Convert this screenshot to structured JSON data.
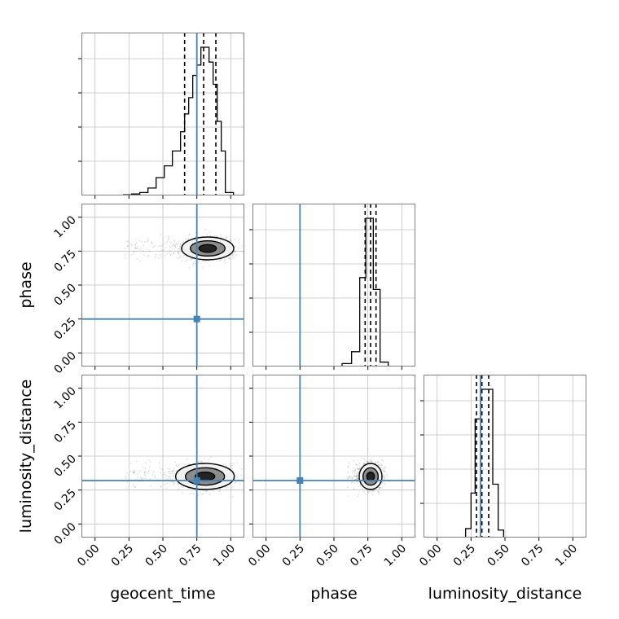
{
  "colors": {
    "truth": "#4682b4",
    "grid": "#c0c0c0",
    "spine": "#808080",
    "hist": "#000000",
    "samples": "#000000",
    "contour_fill_inner": "#111111",
    "contour_fill_mid": "#7a7a7a",
    "contour_fill_outer": "#f2f2f2"
  },
  "chart_data": {
    "type": "corner",
    "parameters": [
      "geocent_time",
      "phase",
      "luminosity_distance"
    ],
    "axis_labels": {
      "x": [
        "geocent_time",
        "phase",
        "luminosity_distance"
      ],
      "y": [
        "",
        "phase",
        "luminosity_distance"
      ]
    },
    "tick_values": [
      0.0,
      0.25,
      0.5,
      0.75,
      1.0
    ],
    "tick_labels": [
      "0.00",
      "0.25",
      "0.50",
      "0.75",
      "1.00"
    ],
    "xlim": [
      -0.1,
      1.1
    ],
    "ylim": [
      -0.1,
      1.1
    ],
    "truths": {
      "geocent_time": 0.75,
      "phase": 0.25,
      "luminosity_distance": 0.32
    },
    "quantile_lines": {
      "geocent_time": [
        0.66,
        0.8,
        0.89
      ],
      "phase": [
        0.73,
        0.77,
        0.81
      ],
      "luminosity_distance": [
        0.29,
        0.33,
        0.38
      ]
    },
    "histograms": {
      "geocent_time": {
        "bin_edges": [
          0.21,
          0.27,
          0.33,
          0.39,
          0.45,
          0.51,
          0.57,
          0.63,
          0.66,
          0.69,
          0.72,
          0.75,
          0.78,
          0.81,
          0.84,
          0.87,
          0.9,
          0.93,
          0.96,
          1.02
        ],
        "counts": [
          0.5,
          1,
          2,
          5,
          12,
          20,
          30,
          43,
          55,
          66,
          81,
          88,
          100,
          100,
          90,
          75,
          50,
          30,
          2
        ]
      },
      "phase": {
        "bin_edges": [
          0.56,
          0.63,
          0.69,
          0.735,
          0.79,
          0.84,
          0.9
        ],
        "counts": [
          2,
          10,
          60,
          100,
          52,
          3
        ]
      },
      "luminosity_distance": {
        "bin_edges": [
          0.21,
          0.25,
          0.28,
          0.32,
          0.36,
          0.41,
          0.45,
          0.49
        ],
        "counts": [
          6,
          30,
          80,
          100,
          100,
          36,
          5
        ]
      }
    },
    "joint": [
      {
        "row": 1,
        "col": 0,
        "x": "geocent_time",
        "y": "phase",
        "center": [
          0.83,
          0.77
        ],
        "sigma": [
          0.08,
          0.035
        ],
        "spread_x": [
          0.22,
          0.98
        ]
      },
      {
        "row": 2,
        "col": 0,
        "x": "geocent_time",
        "y": "luminosity_distance",
        "center": [
          0.81,
          0.35
        ],
        "sigma": [
          0.09,
          0.04
        ],
        "spread_x": [
          0.22,
          0.98
        ]
      },
      {
        "row": 2,
        "col": 1,
        "x": "phase",
        "y": "luminosity_distance",
        "center": [
          0.77,
          0.35
        ],
        "sigma": [
          0.035,
          0.04
        ],
        "spread_x": [
          0.6,
          0.9
        ]
      }
    ]
  }
}
